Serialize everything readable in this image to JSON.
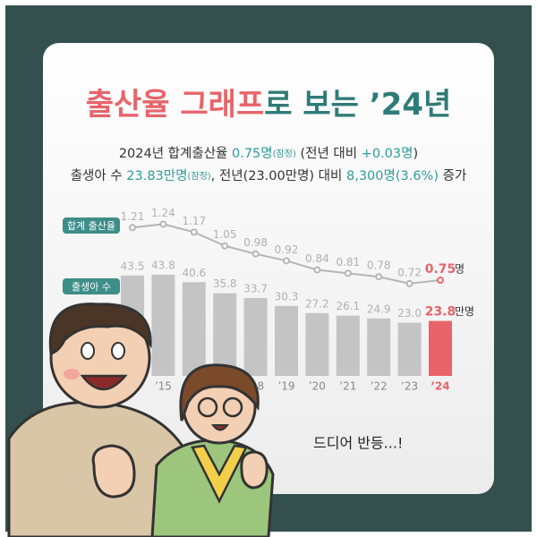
{
  "title": [
    {
      "text": "출산율 ",
      "color": "#e8646a"
    },
    {
      "text": "그래프",
      "color": "#e8646a"
    },
    {
      "text": "로 보는 ’24년",
      "color": "#2f7b78"
    }
  ],
  "subtitle": [
    [
      {
        "text": "2024년 합계출산율 ",
        "color": "#333333"
      },
      {
        "text": "0.75명",
        "color": "#2f9c98"
      },
      {
        "text": "(잠정)",
        "color": "#2f9c98"
      },
      {
        "text": " (전년 대비 ",
        "color": "#333333"
      },
      {
        "text": "+0.03명",
        "color": "#2f9c98"
      },
      {
        "text": ")",
        "color": "#333333"
      }
    ],
    [
      {
        "text": "출생아 수 ",
        "color": "#333333"
      },
      {
        "text": "23.83만명",
        "color": "#2f9c98"
      },
      {
        "text": "(잠정)",
        "color": "#2f9c98"
      },
      {
        "text": ", 전년(23.00만명) 대비 ",
        "color": "#333333"
      },
      {
        "text": "8,300명(3.6%)",
        "color": "#2f9c98"
      },
      {
        "text": " 증가",
        "color": "#333333"
      }
    ]
  ],
  "caption": "드디어 반등...!",
  "chart_data": [
    {
      "type": "line",
      "series": [
        {
          "name": "합계 출산율",
          "color": "#b5b5b5",
          "highlight_color": "#e8646a",
          "unit": "명",
          "values": [
            1.21,
            1.24,
            1.17,
            1.05,
            0.98,
            0.92,
            0.84,
            0.81,
            0.78,
            0.72,
            0.75
          ]
        }
      ],
      "ylim": [
        0.5,
        1.4
      ]
    },
    {
      "type": "bar",
      "categories": [
        null,
        "’15",
        null,
        null,
        "’18",
        "’19",
        "’20",
        "’21",
        "’22",
        "’23",
        "’24"
      ],
      "series": [
        {
          "name": "출생아 수",
          "color": "#c4c4c4",
          "highlight_color": "#e8646a",
          "unit": "만명",
          "values": [
            43.5,
            43.8,
            40.6,
            35.8,
            33.7,
            30.3,
            27.2,
            26.1,
            24.9,
            23.0,
            23.8
          ],
          "value_labels": [
            "43.5",
            "43.8",
            "40.6",
            "35.8",
            "33.7",
            "30.3",
            "27.2",
            "26.1",
            "24.9",
            "23.0",
            "23.8"
          ]
        }
      ],
      "ylim": [
        0,
        50
      ]
    }
  ]
}
